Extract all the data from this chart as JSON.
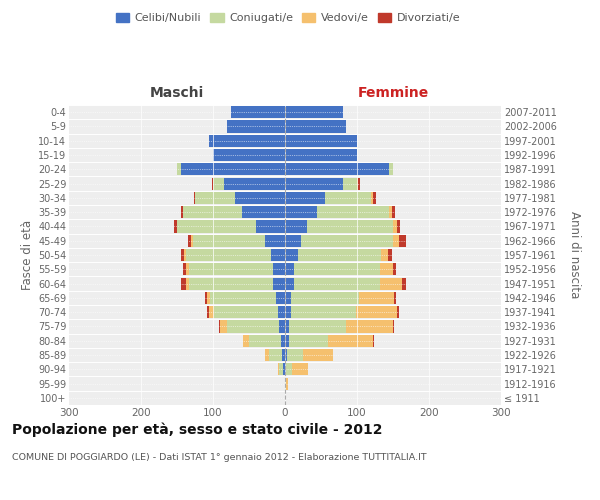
{
  "age_groups": [
    "100+",
    "95-99",
    "90-94",
    "85-89",
    "80-84",
    "75-79",
    "70-74",
    "65-69",
    "60-64",
    "55-59",
    "50-54",
    "45-49",
    "40-44",
    "35-39",
    "30-34",
    "25-29",
    "20-24",
    "15-19",
    "10-14",
    "5-9",
    "0-4"
  ],
  "birth_years": [
    "≤ 1911",
    "1912-1916",
    "1917-1921",
    "1922-1926",
    "1927-1931",
    "1932-1936",
    "1937-1941",
    "1942-1946",
    "1947-1951",
    "1952-1956",
    "1957-1961",
    "1962-1966",
    "1967-1971",
    "1972-1976",
    "1977-1981",
    "1982-1986",
    "1987-1991",
    "1992-1996",
    "1997-2001",
    "2002-2006",
    "2007-2011"
  ],
  "male": {
    "celibi": [
      0,
      0,
      3,
      4,
      5,
      8,
      10,
      12,
      16,
      16,
      20,
      28,
      40,
      60,
      70,
      85,
      145,
      100,
      105,
      80,
      75
    ],
    "coniugati": [
      0,
      0,
      5,
      18,
      45,
      72,
      88,
      92,
      118,
      118,
      118,
      100,
      110,
      82,
      55,
      15,
      5,
      0,
      0,
      0,
      0
    ],
    "vedovi": [
      0,
      0,
      2,
      6,
      9,
      10,
      8,
      5,
      4,
      3,
      2,
      2,
      0,
      0,
      0,
      0,
      0,
      0,
      0,
      0,
      0
    ],
    "divorziati": [
      0,
      0,
      0,
      0,
      0,
      2,
      2,
      2,
      6,
      4,
      4,
      5,
      4,
      2,
      2,
      1,
      0,
      0,
      0,
      0,
      0
    ]
  },
  "female": {
    "nubili": [
      0,
      0,
      2,
      3,
      5,
      5,
      8,
      8,
      12,
      12,
      18,
      22,
      30,
      45,
      55,
      80,
      145,
      100,
      100,
      85,
      80
    ],
    "coniugate": [
      0,
      1,
      8,
      22,
      55,
      80,
      90,
      95,
      120,
      120,
      115,
      128,
      120,
      100,
      65,
      20,
      5,
      0,
      0,
      0,
      0
    ],
    "vedove": [
      0,
      3,
      22,
      42,
      62,
      65,
      58,
      48,
      30,
      18,
      10,
      8,
      5,
      3,
      2,
      2,
      0,
      0,
      0,
      0,
      0
    ],
    "divorziate": [
      0,
      0,
      0,
      0,
      2,
      2,
      3,
      3,
      6,
      4,
      6,
      10,
      5,
      5,
      4,
      2,
      0,
      0,
      0,
      0,
      0
    ]
  },
  "colors": {
    "celibi_nubili": "#4472C4",
    "coniugati": "#c5d9a0",
    "vedovi": "#f5c06e",
    "divorziati": "#c0392b"
  },
  "xlim": 300,
  "title": "Popolazione per età, sesso e stato civile - 2012",
  "subtitle": "COMUNE DI POGGIARDO (LE) - Dati ISTAT 1° gennaio 2012 - Elaborazione TUTTITALIA.IT",
  "ylabel_left": "Fasce di età",
  "ylabel_right": "Anni di nascita",
  "xlabel_left": "Maschi",
  "xlabel_right": "Femmine",
  "background_color": "#ffffff",
  "plot_bg_color": "#eeeeee",
  "grid_color": "#ffffff",
  "bar_height": 0.85
}
